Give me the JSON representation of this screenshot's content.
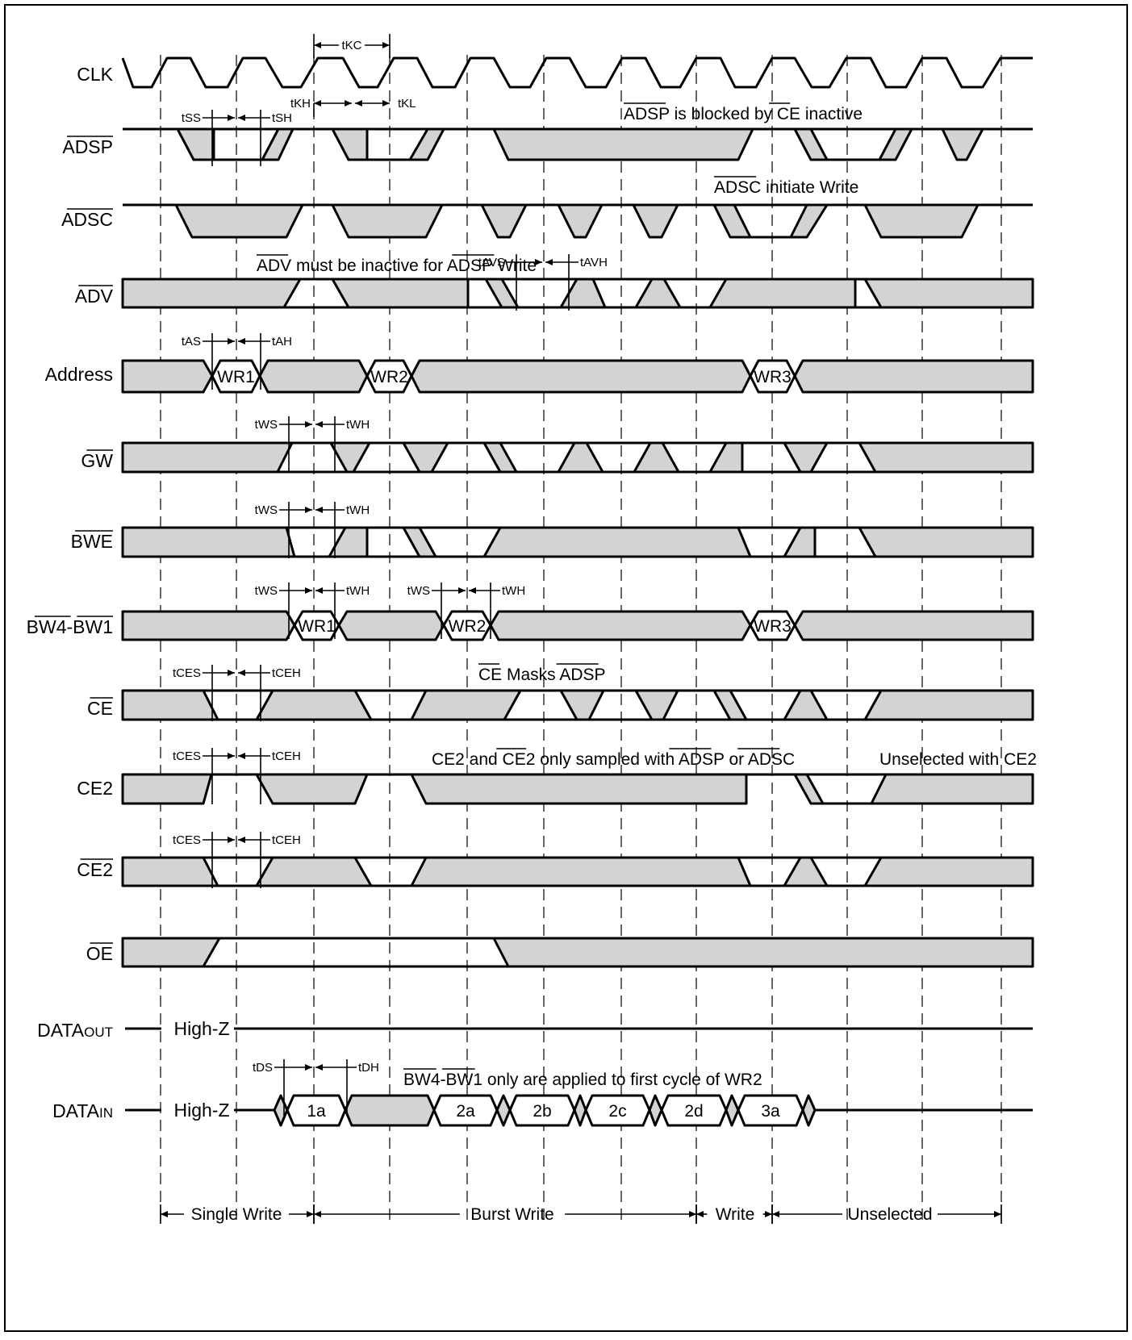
{
  "signals": [
    {
      "id": "clk",
      "label": "CLK",
      "bar": "",
      "rest": "CLK"
    },
    {
      "id": "adsp",
      "label": "ADSP",
      "bar": "ADSP",
      "rest": ""
    },
    {
      "id": "adsc",
      "label": "ADSC",
      "bar": "ADSC",
      "rest": ""
    },
    {
      "id": "adv",
      "label": "ADV",
      "bar": "ADV",
      "rest": ""
    },
    {
      "id": "address",
      "label": "Address",
      "bar": "",
      "rest": "Address"
    },
    {
      "id": "gw",
      "label": "GW",
      "bar": "GW",
      "rest": ""
    },
    {
      "id": "bwe",
      "label": "BWE",
      "bar": "BWE",
      "rest": ""
    },
    {
      "id": "bw",
      "label": "BW4-BW1",
      "bar": "BW4-BW1",
      "rest": ""
    },
    {
      "id": "ce",
      "label": "CE",
      "bar": "CE",
      "rest": ""
    },
    {
      "id": "ce2",
      "label": "CE2",
      "bar": "",
      "rest": "CE2"
    },
    {
      "id": "ce2n",
      "label": "CE2",
      "bar": "CE2",
      "rest": ""
    },
    {
      "id": "oe",
      "label": "OE",
      "bar": "OE",
      "rest": ""
    },
    {
      "id": "dataout",
      "label": "DATAOUT",
      "bar": "",
      "rest": "DATAOUT"
    },
    {
      "id": "datain",
      "label": "DATAIN",
      "bar": "",
      "rest": "DATAIN"
    }
  ],
  "timing": {
    "tkc": "tKC",
    "tkh": "tKH",
    "tkl": "tKL",
    "tss": "tSS",
    "tsh": "tSH",
    "tavs": "tAVS",
    "tavh": "tAVH",
    "tas": "tAS",
    "tah": "tAH",
    "tws": "tWS",
    "twh": "tWH",
    "tces": "tCES",
    "tceh": "tCEH",
    "tds": "tDS",
    "tdh": "tDH"
  },
  "annotations": {
    "adsp_blocked": "ADSP is blocked by CE inactive",
    "adsc_write": "ADSC initiate Write",
    "adv_inactive": "ADV must be inactive for ADSP Write",
    "ce_masks": "CE Masks ADSP",
    "ce2_sampled": "CE2 and CE2 only sampled with ADSP or ADSC",
    "unselected_ce2": "Unselected with CE2",
    "bw_applied": "BW4-BW1 only are applied to first cycle of WR2",
    "high_z": "High-Z"
  },
  "address_cells": [
    "WR1",
    "WR2",
    "WR3"
  ],
  "bw_cells": [
    "WR1",
    "WR2",
    "WR3"
  ],
  "datain_cells": [
    "1a",
    "2a",
    "2b",
    "2c",
    "2d",
    "3a"
  ],
  "phases": [
    "Single Write",
    "Burst Write",
    "Write",
    "Unselected"
  ]
}
